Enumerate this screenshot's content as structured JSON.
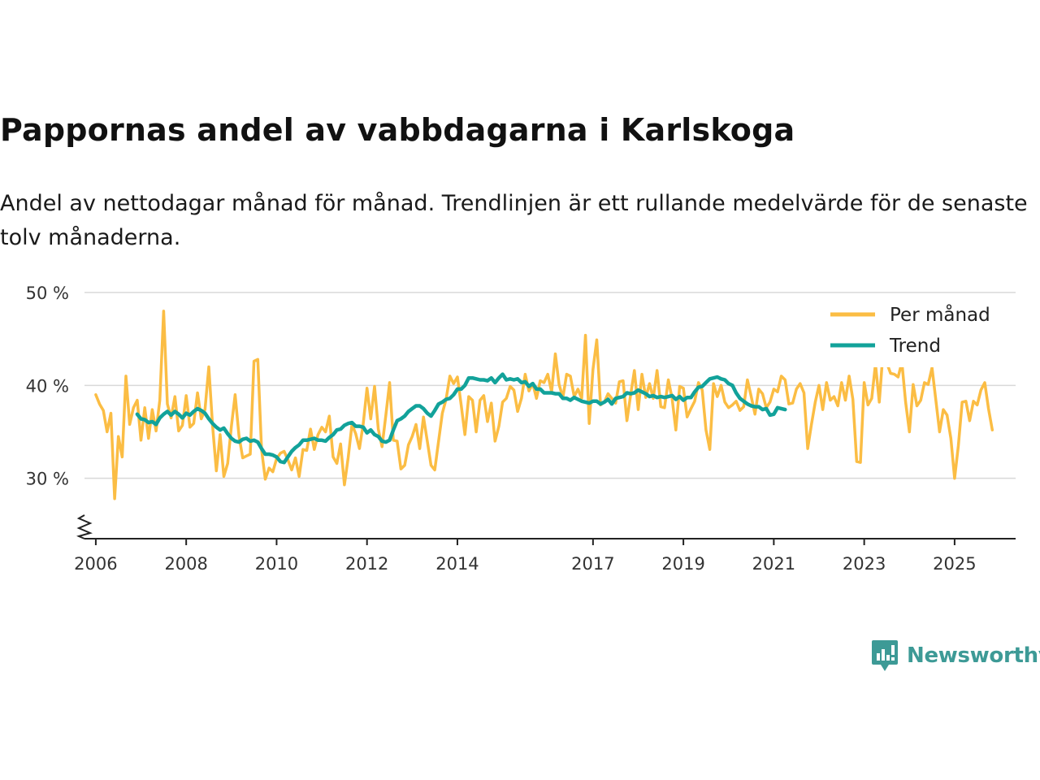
{
  "title": "Pappornas andel av vabbdagarna i Karlskoga",
  "subtitle": "Andel av nettodagar månad för månad. Trendlinjen är ett rullande medelvärde för de senaste tolv månaderna.",
  "brand": {
    "name": "Newsworthy",
    "color": "#3d9a96"
  },
  "chart_data": {
    "type": "line",
    "title": "Pappornas andel av vabbdagarna i Karlskoga",
    "xlabel": "",
    "ylabel": "",
    "x_start": "2006-01",
    "xlim": [
      2005.75,
      2026.35
    ],
    "ylim": [
      23.5,
      50
    ],
    "grid": true,
    "y_axis_break": true,
    "legend_position": "top-right",
    "x_ticks": [
      {
        "value": 2006,
        "label": "2006"
      },
      {
        "value": 2008,
        "label": "2008"
      },
      {
        "value": 2010,
        "label": "2010"
      },
      {
        "value": 2012,
        "label": "2012"
      },
      {
        "value": 2014,
        "label": "2014"
      },
      {
        "value": 2017,
        "label": "2017"
      },
      {
        "value": 2019,
        "label": "2019"
      },
      {
        "value": 2021,
        "label": "2021"
      },
      {
        "value": 2023,
        "label": "2023"
      },
      {
        "value": 2025,
        "label": "2025"
      }
    ],
    "y_ticks": [
      {
        "value": 30,
        "label": "30 %"
      },
      {
        "value": 40,
        "label": "40 %"
      },
      {
        "value": 50,
        "label": "50 %"
      }
    ],
    "series": [
      {
        "name": "Per månad",
        "color": "#fbbd44",
        "values": [
          39.0,
          38.0,
          37.3,
          35.0,
          37.0,
          27.8,
          34.5,
          32.3,
          41.0,
          35.8,
          37.6,
          38.4,
          34.1,
          37.6,
          34.3,
          37.4,
          35.1,
          38.4,
          48.0,
          38.0,
          36.5,
          38.8,
          35.1,
          35.7,
          38.9,
          35.5,
          35.9,
          39.2,
          36.4,
          37.4,
          42.0,
          35.7,
          30.8,
          34.7,
          30.2,
          31.6,
          35.6,
          39.0,
          34.6,
          32.2,
          32.4,
          32.6,
          42.6,
          42.8,
          33.1,
          29.9,
          31.1,
          30.7,
          32.1,
          32.7,
          32.9,
          32.0,
          30.9,
          32.2,
          30.2,
          33.1,
          33.0,
          35.3,
          33.1,
          34.7,
          35.5,
          35.0,
          36.7,
          32.3,
          31.6,
          33.7,
          29.3,
          32.2,
          35.8,
          34.8,
          33.2,
          35.9,
          39.7,
          36.4,
          39.9,
          35.3,
          33.4,
          36.8,
          40.3,
          34.1,
          34.0,
          31.0,
          31.4,
          33.6,
          34.5,
          35.8,
          33.2,
          36.6,
          34.0,
          31.4,
          30.9,
          34.0,
          37.0,
          38.5,
          41.0,
          40.2,
          40.9,
          37.9,
          34.7,
          38.8,
          38.4,
          35.0,
          38.4,
          38.9,
          36.1,
          38.1,
          34.0,
          35.6,
          38.2,
          38.6,
          39.9,
          39.5,
          37.2,
          38.6,
          41.2,
          39.4,
          40.2,
          38.6,
          40.5,
          40.3,
          41.2,
          39.3,
          43.4,
          40.1,
          38.7,
          41.2,
          41.0,
          38.8,
          39.6,
          38.6,
          45.4,
          35.9,
          41.7,
          44.9,
          37.9,
          38.2,
          39.1,
          38.6,
          38.1,
          40.4,
          40.5,
          36.2,
          39.0,
          41.6,
          37.4,
          41.2,
          38.7,
          40.2,
          38.6,
          41.6,
          37.7,
          37.6,
          40.6,
          38.6,
          35.2,
          39.9,
          39.7,
          36.6,
          37.5,
          38.3,
          40.3,
          39.5,
          35.2,
          33.1,
          40.2,
          38.8,
          40.0,
          38.2,
          37.6,
          37.9,
          38.3,
          37.3,
          37.7,
          40.6,
          38.8,
          36.9,
          39.6,
          39.1,
          37.6,
          38.2,
          39.6,
          39.3,
          41.0,
          40.6,
          38.0,
          38.1,
          39.6,
          40.2,
          39.2,
          33.2,
          35.8,
          38.2,
          40.0,
          37.4,
          40.3,
          38.4,
          38.8,
          37.8,
          40.3,
          38.4,
          41.0,
          38.5,
          31.8,
          31.7,
          40.3,
          37.9,
          38.6,
          42.3,
          38.2,
          43.6,
          42.4,
          41.3,
          41.2,
          40.9,
          42.5,
          38.2,
          35.0,
          40.1,
          37.8,
          38.4,
          40.3,
          40.1,
          41.9,
          38.5,
          35.0,
          37.4,
          36.8,
          34.3,
          30.0,
          33.5,
          38.2,
          38.3,
          36.2,
          38.3,
          37.9,
          39.5,
          40.3,
          37.5,
          35.2
        ]
      },
      {
        "name": "Trend",
        "color": "#12a29a",
        "start_index": 11,
        "values": [
          36.9,
          36.4,
          36.3,
          36.0,
          36.1,
          35.8,
          36.5,
          36.9,
          37.2,
          36.8,
          37.2,
          36.9,
          36.5,
          37.0,
          36.8,
          37.2,
          37.5,
          37.3,
          37.0,
          36.4,
          35.9,
          35.5,
          35.2,
          35.4,
          34.8,
          34.3,
          34.0,
          33.9,
          34.2,
          34.3,
          34.0,
          34.1,
          33.9,
          33.2,
          32.6,
          32.6,
          32.5,
          32.3,
          31.8,
          31.7,
          32.3,
          32.9,
          33.3,
          33.6,
          34.1,
          34.1,
          34.2,
          34.3,
          34.1,
          34.1,
          34.0,
          34.4,
          34.7,
          35.2,
          35.3,
          35.7,
          35.9,
          36.0,
          35.6,
          35.6,
          35.5,
          34.9,
          35.2,
          34.7,
          34.5,
          34.0,
          33.9,
          34.1,
          35.2,
          36.2,
          36.4,
          36.7,
          37.2,
          37.5,
          37.8,
          37.8,
          37.5,
          37.0,
          36.7,
          37.3,
          38.0,
          38.2,
          38.5,
          38.6,
          39.0,
          39.6,
          39.6,
          40.0,
          40.8,
          40.8,
          40.7,
          40.6,
          40.6,
          40.5,
          40.8,
          40.3,
          40.8,
          41.2,
          40.6,
          40.7,
          40.6,
          40.7,
          40.3,
          40.4,
          39.9,
          40.2,
          39.6,
          39.6,
          39.2,
          39.2,
          39.2,
          39.1,
          39.1,
          38.6,
          38.6,
          38.4,
          38.7,
          38.5,
          38.3,
          38.2,
          38.1,
          38.3,
          38.3,
          38.0,
          38.2,
          38.5,
          38.0,
          38.6,
          38.7,
          38.8,
          39.2,
          39.1,
          39.2,
          39.5,
          39.3,
          39.1,
          38.8,
          38.9,
          38.7,
          38.8,
          38.7,
          38.8,
          38.9,
          38.5,
          38.8,
          38.4,
          38.7,
          38.7,
          39.3,
          39.8,
          39.9,
          40.3,
          40.7,
          40.8,
          40.9,
          40.7,
          40.6,
          40.2,
          40.0,
          39.2,
          38.6,
          38.3,
          38.0,
          37.8,
          37.7,
          37.7,
          37.4,
          37.5,
          36.8,
          36.9,
          37.6,
          37.5,
          37.4
        ]
      }
    ]
  }
}
